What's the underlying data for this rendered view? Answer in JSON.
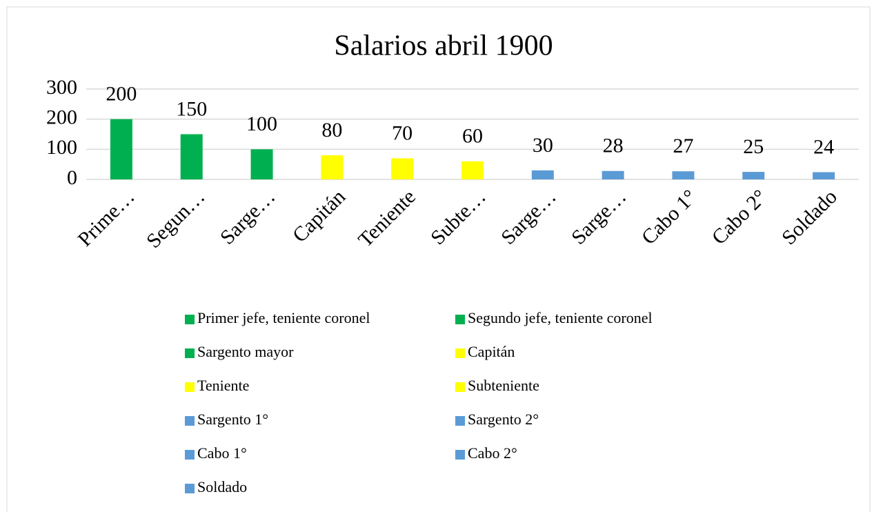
{
  "chart_data": {
    "type": "bar",
    "title": "Salarios abril 1900",
    "categories": [
      "Prime…",
      "Segun…",
      "Sarge…",
      "Capitán",
      "Teniente",
      "Subte…",
      "Sarge…",
      "Sarge…",
      "Cabo 1°",
      "Cabo 2°",
      "Soldado"
    ],
    "values": [
      200,
      150,
      100,
      80,
      70,
      60,
      30,
      28,
      27,
      25,
      24
    ],
    "colors": [
      "#00b050",
      "#00b050",
      "#00b050",
      "#ffff00",
      "#ffff00",
      "#ffff00",
      "#5b9bd5",
      "#5b9bd5",
      "#5b9bd5",
      "#5b9bd5",
      "#5b9bd5"
    ],
    "legend": [
      "Primer jefe, teniente coronel",
      "Segundo jefe, teniente coronel",
      "Sargento mayor",
      "Capitán",
      "Teniente",
      "Subteniente",
      "Sargento 1°",
      "Sargento 2°",
      "Cabo 1°",
      "Cabo 2°",
      "Soldado"
    ],
    "ylim": [
      0,
      300
    ],
    "yticks": [
      0,
      100,
      200,
      300
    ],
    "grid": true
  }
}
